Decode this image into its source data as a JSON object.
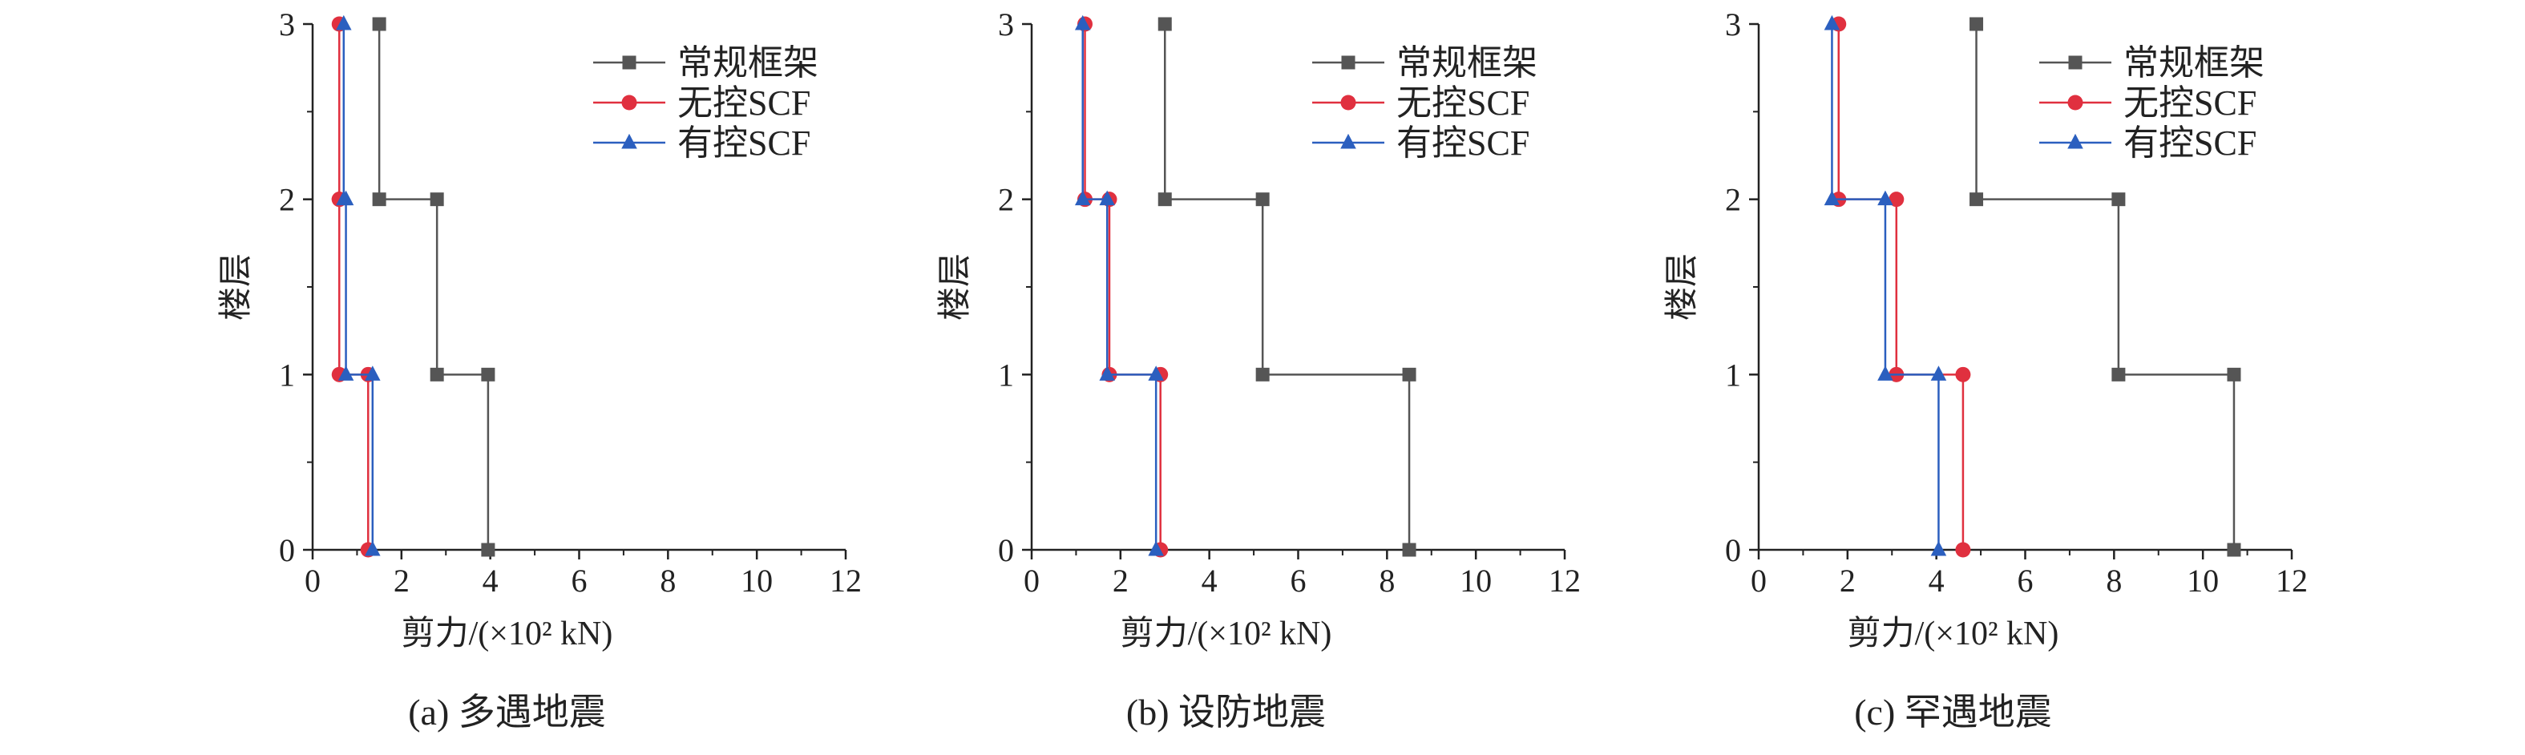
{
  "chart_data": [
    {
      "type": "line",
      "title": "(a) 多遇地震",
      "xlabel": "剪力/(×10² kN)",
      "ylabel": "楼层",
      "xlim": [
        0,
        12
      ],
      "ylim": [
        0,
        3
      ],
      "xticks": [
        "0",
        "2",
        "4",
        "6",
        "8",
        "10",
        "12"
      ],
      "yticks": [
        "0",
        "1",
        "2",
        "3"
      ],
      "legend_position": "top-right",
      "series": [
        {
          "name": "常规框架",
          "color": "#555555",
          "marker": "square",
          "x": [
            3.95,
            3.95,
            2.8,
            2.8,
            1.5,
            1.5
          ],
          "y": [
            0,
            1,
            1,
            2,
            2,
            3
          ]
        },
        {
          "name": "无控SCF",
          "color": "#e0303f",
          "marker": "circle",
          "x": [
            1.25,
            1.25,
            0.6,
            0.6,
            0.6,
            0.6
          ],
          "y": [
            0,
            1,
            1,
            2,
            2,
            3
          ]
        },
        {
          "name": "有控SCF",
          "color": "#2b5fbf",
          "marker": "triangle",
          "x": [
            1.35,
            1.35,
            0.75,
            0.75,
            0.7,
            0.7
          ],
          "y": [
            0,
            1,
            1,
            2,
            2,
            3
          ]
        }
      ]
    },
    {
      "type": "line",
      "title": "(b) 设防地震",
      "xlabel": "剪力/(×10² kN)",
      "ylabel": "楼层",
      "xlim": [
        0,
        12
      ],
      "ylim": [
        0,
        3
      ],
      "xticks": [
        "0",
        "2",
        "4",
        "6",
        "8",
        "10",
        "12"
      ],
      "yticks": [
        "0",
        "1",
        "2",
        "3"
      ],
      "legend_position": "top-right",
      "series": [
        {
          "name": "常规框架",
          "color": "#555555",
          "marker": "square",
          "x": [
            8.5,
            8.5,
            5.2,
            5.2,
            3.0,
            3.0
          ],
          "y": [
            0,
            1,
            1,
            2,
            2,
            3
          ]
        },
        {
          "name": "无控SCF",
          "color": "#e0303f",
          "marker": "circle",
          "x": [
            2.9,
            2.9,
            1.75,
            1.75,
            1.2,
            1.2
          ],
          "y": [
            0,
            1,
            1,
            2,
            2,
            3
          ]
        },
        {
          "name": "有控SCF",
          "color": "#2b5fbf",
          "marker": "triangle",
          "x": [
            2.8,
            2.8,
            1.7,
            1.7,
            1.15,
            1.15
          ],
          "y": [
            0,
            1,
            1,
            2,
            2,
            3
          ]
        }
      ]
    },
    {
      "type": "line",
      "title": "(c) 罕遇地震",
      "xlabel": "剪力/(×10² kN)",
      "ylabel": "楼层",
      "xlim": [
        0,
        12
      ],
      "ylim": [
        0,
        3
      ],
      "xticks": [
        "0",
        "2",
        "4",
        "6",
        "8",
        "10",
        "12"
      ],
      "yticks": [
        "0",
        "1",
        "2",
        "3"
      ],
      "legend_position": "top-right",
      "series": [
        {
          "name": "常规框架",
          "color": "#555555",
          "marker": "square",
          "x": [
            10.7,
            10.7,
            8.1,
            8.1,
            4.9,
            4.9
          ],
          "y": [
            0,
            1,
            1,
            2,
            2,
            3
          ]
        },
        {
          "name": "无控SCF",
          "color": "#e0303f",
          "marker": "circle",
          "x": [
            4.6,
            4.6,
            3.1,
            3.1,
            1.8,
            1.8
          ],
          "y": [
            0,
            1,
            1,
            2,
            2,
            3
          ]
        },
        {
          "name": "有控SCF",
          "color": "#2b5fbf",
          "marker": "triangle",
          "x": [
            4.05,
            4.05,
            2.85,
            2.85,
            1.65,
            1.65
          ],
          "y": [
            0,
            1,
            1,
            2,
            2,
            3
          ]
        }
      ]
    }
  ]
}
